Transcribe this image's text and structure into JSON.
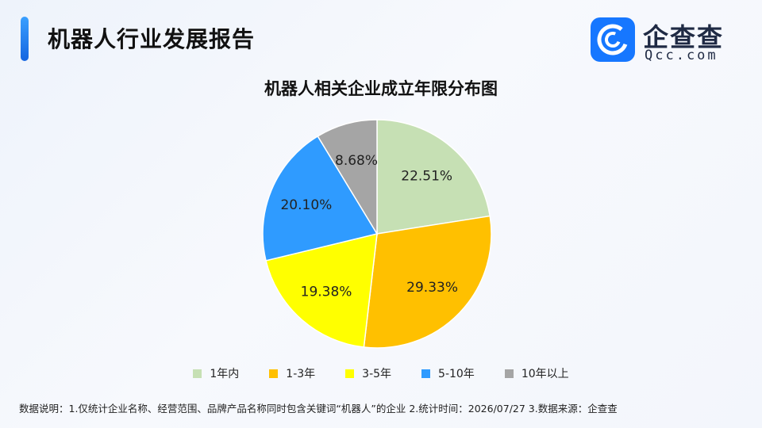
{
  "header": {
    "title": "机器人行业发展报告"
  },
  "logo": {
    "name_cn": "企查查",
    "name_en": "Qcc.com"
  },
  "chart_data": {
    "type": "pie",
    "title": "机器人相关企业成立年限分布图",
    "start_angle": "12 o'clock",
    "direction": "clockwise",
    "legend_position": "bottom",
    "categories": [
      "1年内",
      "1-3年",
      "3-5年",
      "5-10年",
      "10年以上"
    ],
    "values": [
      22.51,
      29.33,
      19.38,
      20.1,
      8.68
    ],
    "value_labels": [
      "22.51%",
      "29.33%",
      "19.38%",
      "20.10%",
      "8.68%"
    ],
    "colors": [
      "#c6e0b4",
      "#ffc000",
      "#ffff00",
      "#2f9bff",
      "#a5a5a5"
    ]
  },
  "footnote": "数据说明：1.仅统计企业名称、经营范围、品牌产品名称同时包含关键词“机器人”的企业   2.统计时间：2026/07/27   3.数据来源：企查查"
}
